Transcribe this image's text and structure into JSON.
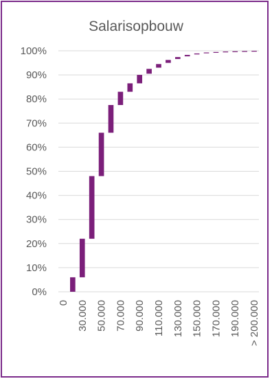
{
  "chart_data": {
    "type": "bar",
    "title": "Salarisopbouw",
    "xlabel": "",
    "ylabel": "",
    "ylim": [
      0,
      1
    ],
    "y_ticks": [
      "0%",
      "10%",
      "20%",
      "30%",
      "40%",
      "50%",
      "60%",
      "70%",
      "80%",
      "90%",
      "100%"
    ],
    "x_ticks": [
      "0",
      "30.000",
      "50.000",
      "70.000",
      "90.000",
      "110.000",
      "130.000",
      "150.000",
      "170.000",
      "190.000",
      "> 200.000"
    ],
    "x_tick_positions": [
      0,
      2,
      4,
      6,
      8,
      10,
      12,
      14,
      16,
      18,
      20
    ],
    "segments": [
      {
        "index": 1,
        "start": 0.0,
        "end": 0.06
      },
      {
        "index": 2,
        "start": 0.06,
        "end": 0.22
      },
      {
        "index": 3,
        "start": 0.22,
        "end": 0.48
      },
      {
        "index": 4,
        "start": 0.48,
        "end": 0.66
      },
      {
        "index": 5,
        "start": 0.66,
        "end": 0.775
      },
      {
        "index": 6,
        "start": 0.775,
        "end": 0.83
      },
      {
        "index": 7,
        "start": 0.83,
        "end": 0.865
      },
      {
        "index": 8,
        "start": 0.865,
        "end": 0.9
      },
      {
        "index": 9,
        "start": 0.905,
        "end": 0.925
      },
      {
        "index": 10,
        "start": 0.93,
        "end": 0.945
      },
      {
        "index": 11,
        "start": 0.95,
        "end": 0.962
      },
      {
        "index": 12,
        "start": 0.966,
        "end": 0.974
      },
      {
        "index": 13,
        "start": 0.977,
        "end": 0.983
      },
      {
        "index": 14,
        "start": 0.985,
        "end": 0.989
      },
      {
        "index": 15,
        "start": 0.99,
        "end": 0.993
      },
      {
        "index": 16,
        "start": 0.993,
        "end": 0.995
      },
      {
        "index": 17,
        "start": 0.995,
        "end": 0.997
      },
      {
        "index": 18,
        "start": 0.997,
        "end": 0.998
      },
      {
        "index": 19,
        "start": 0.998,
        "end": 0.999
      },
      {
        "index": 20,
        "start": 0.999,
        "end": 1.0
      }
    ],
    "grid": true,
    "colors": {
      "bar": "#7b1f7a",
      "grid": "#d9d9d9",
      "border": "#7b2a8a"
    }
  }
}
